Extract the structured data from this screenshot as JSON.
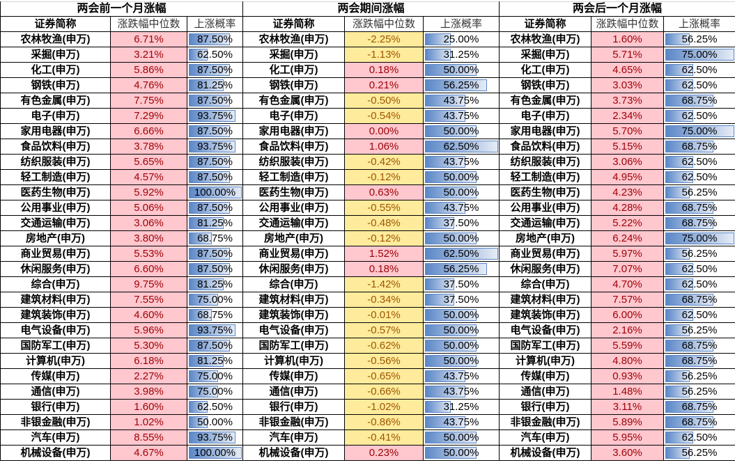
{
  "sections": [
    {
      "title": "两会前一个月涨幅",
      "headers": {
        "name": "证券简称",
        "median": "涨跌幅中位数",
        "prob": "上涨概率"
      },
      "rows": [
        {
          "name": "农林牧渔(申万)",
          "median": "6.71%",
          "prob": "87.50%"
        },
        {
          "name": "采掘(申万)",
          "median": "3.21%",
          "prob": "62.50%"
        },
        {
          "name": "化工(申万)",
          "median": "5.86%",
          "prob": "87.50%"
        },
        {
          "name": "钢铁(申万)",
          "median": "4.76%",
          "prob": "81.25%"
        },
        {
          "name": "有色金属(申万)",
          "median": "7.75%",
          "prob": "87.50%"
        },
        {
          "name": "电子(申万)",
          "median": "7.29%",
          "prob": "93.75%"
        },
        {
          "name": "家用电器(申万)",
          "median": "6.66%",
          "prob": "87.50%"
        },
        {
          "name": "食品饮料(申万)",
          "median": "3.78%",
          "prob": "93.75%"
        },
        {
          "name": "纺织服装(申万)",
          "median": "5.65%",
          "prob": "87.50%"
        },
        {
          "name": "轻工制造(申万)",
          "median": "4.57%",
          "prob": "87.50%"
        },
        {
          "name": "医药生物(申万)",
          "median": "5.92%",
          "prob": "100.00%"
        },
        {
          "name": "公用事业(申万)",
          "median": "5.06%",
          "prob": "87.50%"
        },
        {
          "name": "交通运输(申万)",
          "median": "3.06%",
          "prob": "81.25%"
        },
        {
          "name": "房地产(申万)",
          "median": "3.80%",
          "prob": "68.75%"
        },
        {
          "name": "商业贸易(申万)",
          "median": "5.53%",
          "prob": "87.50%"
        },
        {
          "name": "休闲服务(申万)",
          "median": "6.60%",
          "prob": "87.50%"
        },
        {
          "name": "综合(申万)",
          "median": "9.75%",
          "prob": "81.25%"
        },
        {
          "name": "建筑材料(申万)",
          "median": "7.55%",
          "prob": "75.00%"
        },
        {
          "name": "建筑装饰(申万)",
          "median": "4.60%",
          "prob": "68.75%"
        },
        {
          "name": "电气设备(申万)",
          "median": "5.96%",
          "prob": "93.75%"
        },
        {
          "name": "国防军工(申万)",
          "median": "5.30%",
          "prob": "87.50%"
        },
        {
          "name": "计算机(申万)",
          "median": "6.18%",
          "prob": "81.25%"
        },
        {
          "name": "传媒(申万)",
          "median": "2.27%",
          "prob": "75.00%"
        },
        {
          "name": "通信(申万)",
          "median": "3.98%",
          "prob": "75.00%"
        },
        {
          "name": "银行(申万)",
          "median": "1.60%",
          "prob": "62.50%"
        },
        {
          "name": "非银金融(申万)",
          "median": "1.02%",
          "prob": "50.00%"
        },
        {
          "name": "汽车(申万)",
          "median": "8.55%",
          "prob": "93.75%"
        },
        {
          "name": "机械设备(申万)",
          "median": "4.67%",
          "prob": "100.00%"
        }
      ]
    },
    {
      "title": "两会期间涨幅",
      "headers": {
        "name": "证券简称",
        "median": "涨跌幅中位数",
        "prob": "上涨概率"
      },
      "rows": [
        {
          "name": "农林牧渔(申万)",
          "median": "-2.25%",
          "prob": "25.00%"
        },
        {
          "name": "采掘(申万)",
          "median": "-1.13%",
          "prob": "31.25%"
        },
        {
          "name": "化工(申万)",
          "median": "0.18%",
          "prob": "50.00%"
        },
        {
          "name": "钢铁(申万)",
          "median": "0.21%",
          "prob": "56.25%"
        },
        {
          "name": "有色金属(申万)",
          "median": "-0.50%",
          "prob": "43.75%"
        },
        {
          "name": "电子(申万)",
          "median": "-0.54%",
          "prob": "43.75%"
        },
        {
          "name": "家用电器(申万)",
          "median": "0.00%",
          "prob": "50.00%"
        },
        {
          "name": "食品饮料(申万)",
          "median": "1.06%",
          "prob": "62.50%"
        },
        {
          "name": "纺织服装(申万)",
          "median": "-0.42%",
          "prob": "43.75%"
        },
        {
          "name": "轻工制造(申万)",
          "median": "-0.12%",
          "prob": "50.00%"
        },
        {
          "name": "医药生物(申万)",
          "median": "0.63%",
          "prob": "50.00%"
        },
        {
          "name": "公用事业(申万)",
          "median": "-0.55%",
          "prob": "43.75%"
        },
        {
          "name": "交通运输(申万)",
          "median": "-0.48%",
          "prob": "37.50%"
        },
        {
          "name": "房地产(申万)",
          "median": "-0.12%",
          "prob": "50.00%"
        },
        {
          "name": "商业贸易(申万)",
          "median": "1.52%",
          "prob": "62.50%"
        },
        {
          "name": "休闲服务(申万)",
          "median": "0.18%",
          "prob": "56.25%"
        },
        {
          "name": "综合(申万)",
          "median": "-1.42%",
          "prob": "37.50%"
        },
        {
          "name": "建筑材料(申万)",
          "median": "-0.34%",
          "prob": "37.50%"
        },
        {
          "name": "建筑装饰(申万)",
          "median": "-0.01%",
          "prob": "50.00%"
        },
        {
          "name": "电气设备(申万)",
          "median": "-0.57%",
          "prob": "50.00%"
        },
        {
          "name": "国防军工(申万)",
          "median": "-0.62%",
          "prob": "50.00%"
        },
        {
          "name": "计算机(申万)",
          "median": "-0.56%",
          "prob": "50.00%"
        },
        {
          "name": "传媒(申万)",
          "median": "-0.65%",
          "prob": "43.75%"
        },
        {
          "name": "通信(申万)",
          "median": "-0.66%",
          "prob": "43.75%"
        },
        {
          "name": "银行(申万)",
          "median": "-1.02%",
          "prob": "31.25%"
        },
        {
          "name": "非银金融(申万)",
          "median": "-0.86%",
          "prob": "43.75%"
        },
        {
          "name": "汽车(申万)",
          "median": "-0.41%",
          "prob": "50.00%"
        },
        {
          "name": "机械设备(申万)",
          "median": "0.23%",
          "prob": "50.00%"
        }
      ]
    },
    {
      "title": "两会后一个月涨幅",
      "headers": {
        "name": "证券简称",
        "median": "涨跌幅中位数",
        "prob": "上涨概率"
      },
      "rows": [
        {
          "name": "农林牧渔(申万)",
          "median": "1.60%",
          "prob": "56.25%"
        },
        {
          "name": "采掘(申万)",
          "median": "5.71%",
          "prob": "75.00%"
        },
        {
          "name": "化工(申万)",
          "median": "4.65%",
          "prob": "62.50%"
        },
        {
          "name": "钢铁(申万)",
          "median": "3.03%",
          "prob": "62.50%"
        },
        {
          "name": "有色金属(申万)",
          "median": "3.73%",
          "prob": "68.75%"
        },
        {
          "name": "电子(申万)",
          "median": "2.34%",
          "prob": "62.50%"
        },
        {
          "name": "家用电器(申万)",
          "median": "5.70%",
          "prob": "75.00%"
        },
        {
          "name": "食品饮料(申万)",
          "median": "5.15%",
          "prob": "68.75%"
        },
        {
          "name": "纺织服装(申万)",
          "median": "3.06%",
          "prob": "62.50%"
        },
        {
          "name": "轻工制造(申万)",
          "median": "4.95%",
          "prob": "62.50%"
        },
        {
          "name": "医药生物(申万)",
          "median": "4.23%",
          "prob": "56.25%"
        },
        {
          "name": "公用事业(申万)",
          "median": "4.28%",
          "prob": "68.75%"
        },
        {
          "name": "交通运输(申万)",
          "median": "5.22%",
          "prob": "68.75%"
        },
        {
          "name": "房地产(申万)",
          "median": "6.24%",
          "prob": "75.00%"
        },
        {
          "name": "商业贸易(申万)",
          "median": "5.97%",
          "prob": "56.25%"
        },
        {
          "name": "休闲服务(申万)",
          "median": "7.07%",
          "prob": "62.50%"
        },
        {
          "name": "综合(申万)",
          "median": "4.70%",
          "prob": "62.50%"
        },
        {
          "name": "建筑材料(申万)",
          "median": "7.57%",
          "prob": "68.75%"
        },
        {
          "name": "建筑装饰(申万)",
          "median": "6.00%",
          "prob": "62.50%"
        },
        {
          "name": "电气设备(申万)",
          "median": "2.16%",
          "prob": "56.25%"
        },
        {
          "name": "国防军工(申万)",
          "median": "5.59%",
          "prob": "68.75%"
        },
        {
          "name": "计算机(申万)",
          "median": "4.80%",
          "prob": "68.75%"
        },
        {
          "name": "传媒(申万)",
          "median": "0.93%",
          "prob": "56.25%"
        },
        {
          "name": "通信(申万)",
          "median": "1.48%",
          "prob": "56.25%"
        },
        {
          "name": "银行(申万)",
          "median": "3.11%",
          "prob": "68.75%"
        },
        {
          "name": "非银金融(申万)",
          "median": "5.89%",
          "prob": "68.75%"
        },
        {
          "name": "汽车(申万)",
          "median": "5.95%",
          "prob": "62.50%"
        },
        {
          "name": "机械设备(申万)",
          "median": "3.60%",
          "prob": "56.25%"
        }
      ]
    }
  ],
  "colors": {
    "positive_fill": "#ffc7ce",
    "positive_text": "#9c0006",
    "negative_fill": "#ffeb9c",
    "negative_text": "#9c5700",
    "databar": "#5b87c7"
  }
}
